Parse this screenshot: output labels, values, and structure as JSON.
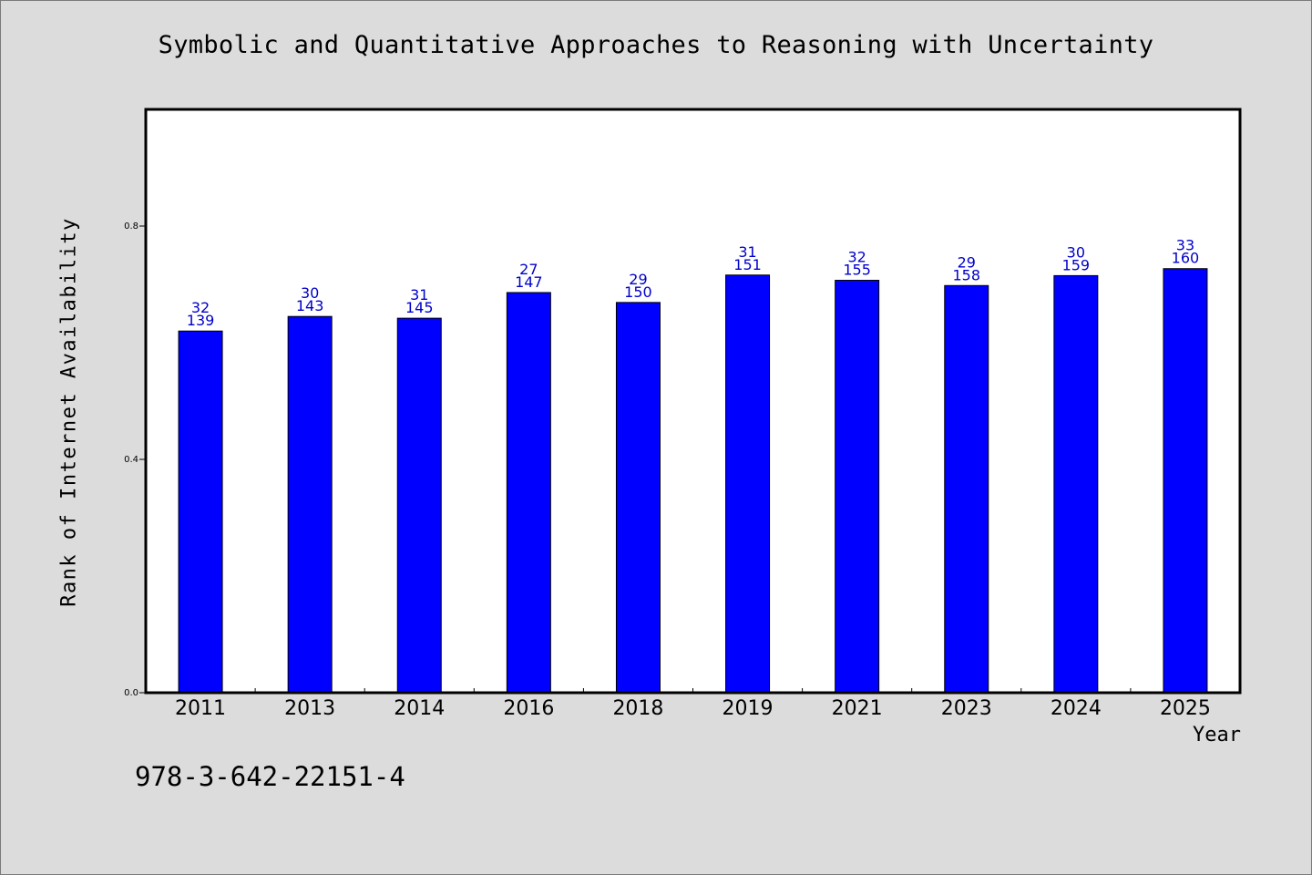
{
  "chart_data": {
    "type": "bar",
    "title": "Symbolic and Quantitative Approaches to Reasoning with Uncertainty",
    "xlabel": "Year",
    "ylabel": "Rank of Internet Availability",
    "categories": [
      "2011",
      "2013",
      "2014",
      "2016",
      "2018",
      "2019",
      "2021",
      "2023",
      "2024",
      "2025"
    ],
    "values": [
      0.62,
      0.645,
      0.642,
      0.686,
      0.669,
      0.716,
      0.707,
      0.698,
      0.715,
      0.727
    ],
    "labels_top": [
      "32",
      "30",
      "31",
      "27",
      "29",
      "31",
      "32",
      "29",
      "30",
      "33"
    ],
    "labels_bottom": [
      "139",
      "143",
      "145",
      "147",
      "150",
      "151",
      "155",
      "158",
      "159",
      "160"
    ],
    "ylim": [
      0.0,
      1.0
    ],
    "yticks": [
      "0.0",
      "0.4",
      "0.8"
    ],
    "bar_color": "#0000ff",
    "label_color": "#0000cc",
    "grid": false,
    "legend": "none"
  },
  "footnote": "978-3-642-22151-4"
}
